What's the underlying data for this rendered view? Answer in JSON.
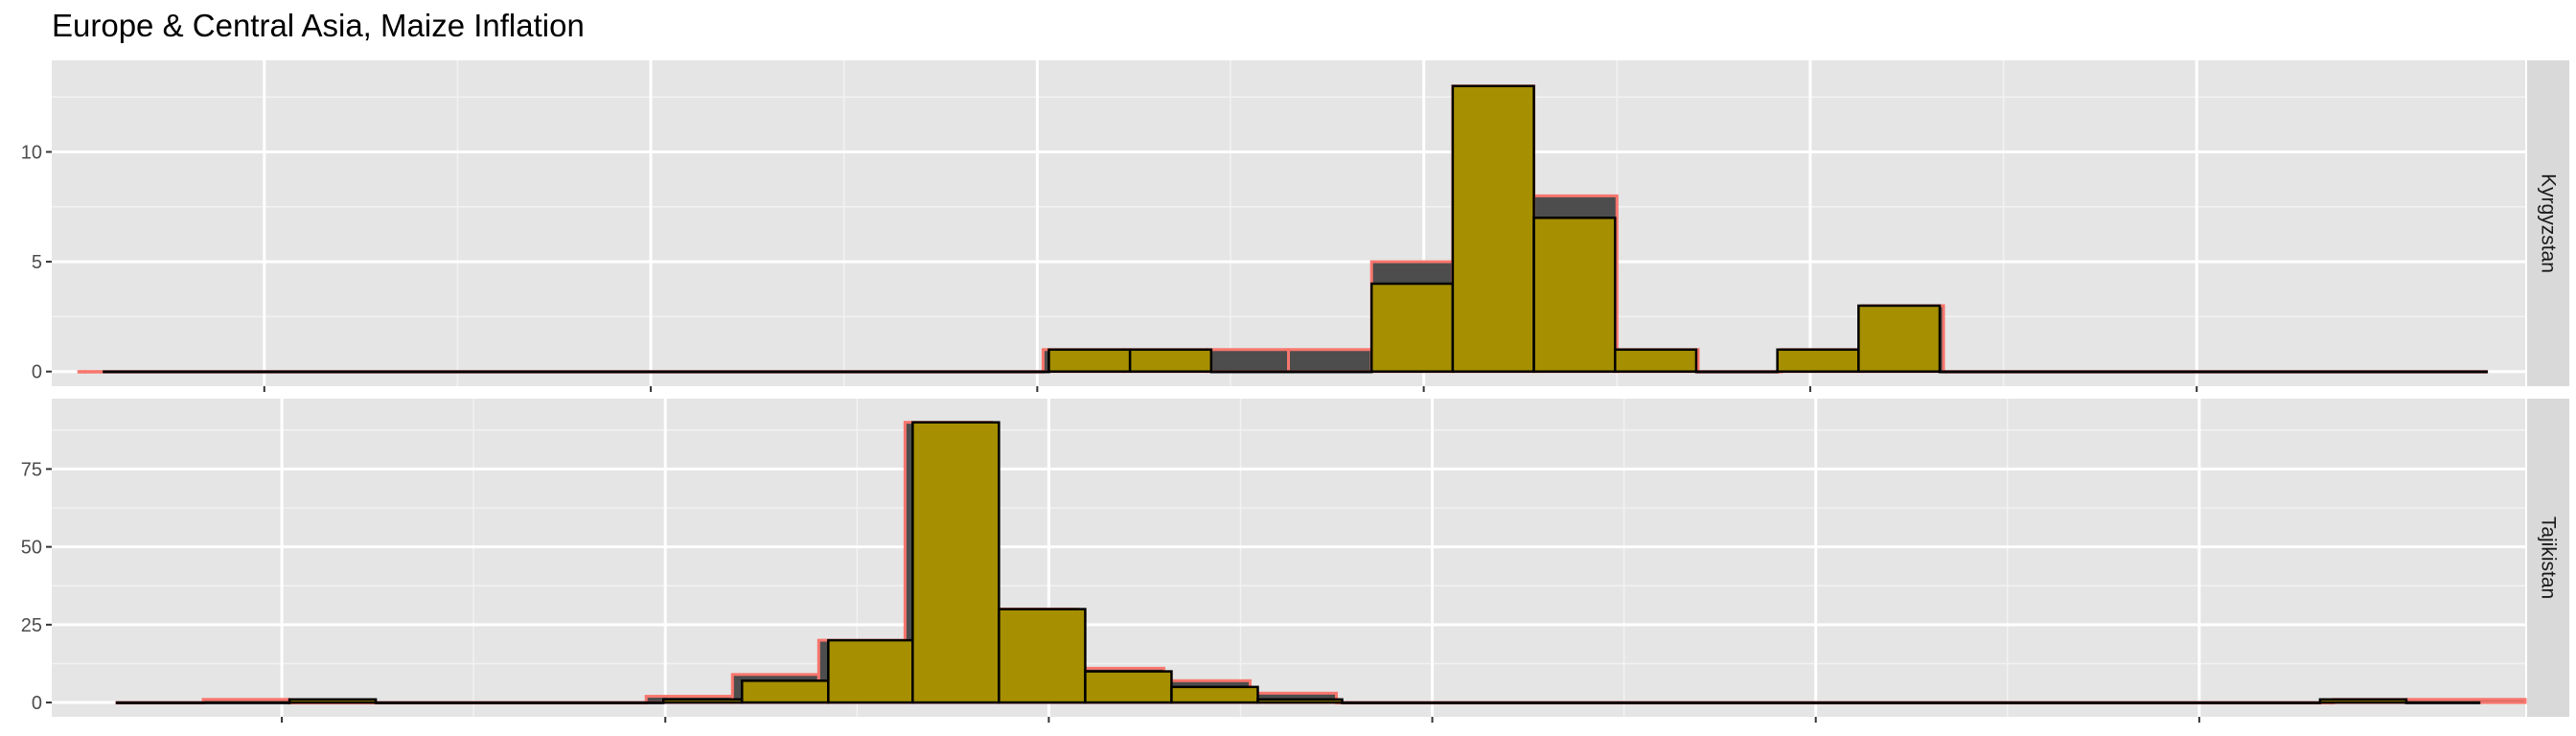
{
  "chart_data": {
    "type": "bar",
    "title": "Europe & Central Asia, Maize Inflation",
    "xlabel": "",
    "ylabel": "",
    "grid": true,
    "legend": "none",
    "colors": {
      "panel_bg": "#e5e5e5",
      "grid_major": "#ffffff",
      "grid_minor": "#f2f2f2",
      "strip_bg": "#d9d9d9",
      "fill_main": "#a68f00",
      "outline_main": "#000000",
      "fill_back": "#4d4d4d",
      "outline_back": "#f8766d"
    },
    "panels": [
      {
        "strip": "Kyrgyzstan",
        "ylim": [
          0,
          13.5
        ],
        "yticks": [
          0,
          5,
          10
        ],
        "series": [
          {
            "name": "",
            "role": "back",
            "bins": [
              [
                -19.6,
                -19.3,
                0
              ],
              [
                -19.3,
                30.3,
                0
              ],
              [
                30.3,
                34.5,
                1
              ],
              [
                34.5,
                38.8,
                1
              ],
              [
                38.8,
                43.0,
                1
              ],
              [
                43.0,
                47.3,
                1
              ],
              [
                47.3,
                51.5,
                5
              ],
              [
                51.5,
                55.7,
                13
              ],
              [
                55.7,
                60.0,
                8
              ],
              [
                60.0,
                64.2,
                1
              ],
              [
                64.2,
                68.5,
                0
              ],
              [
                68.5,
                72.7,
                1
              ],
              [
                72.7,
                76.9,
                3
              ],
              [
                76.9,
                105.0,
                0
              ]
            ]
          },
          {
            "name": "",
            "role": "front",
            "bins": [
              [
                -18.3,
                30.6,
                0
              ],
              [
                30.6,
                34.8,
                1
              ],
              [
                34.8,
                39.0,
                1
              ],
              [
                39.0,
                43.2,
                0
              ],
              [
                43.2,
                47.3,
                0
              ],
              [
                47.3,
                51.5,
                4
              ],
              [
                51.5,
                55.7,
                13
              ],
              [
                55.7,
                59.9,
                7
              ],
              [
                59.9,
                64.1,
                1
              ],
              [
                64.1,
                68.3,
                0
              ],
              [
                68.3,
                72.5,
                1
              ],
              [
                72.5,
                76.7,
                3
              ],
              [
                76.7,
                105.0,
                0
              ]
            ]
          }
        ]
      },
      {
        "strip": "Tajikistan",
        "ylim": [
          0,
          93
        ],
        "yticks": [
          0,
          25,
          50,
          75
        ],
        "series": [
          {
            "name": "",
            "role": "back",
            "bins": [
              [
                -18.6,
                -14.1,
                0
              ],
              [
                -14.1,
                -9.6,
                1
              ],
              [
                -9.6,
                9.0,
                0
              ],
              [
                9.0,
                13.5,
                2
              ],
              [
                13.5,
                18.0,
                9
              ],
              [
                18.0,
                22.5,
                20
              ],
              [
                22.5,
                27.0,
                90
              ],
              [
                27.0,
                31.5,
                30
              ],
              [
                31.5,
                36.0,
                11
              ],
              [
                36.0,
                40.5,
                7
              ],
              [
                40.5,
                45.0,
                3
              ],
              [
                45.0,
                97.0,
                0
              ],
              [
                97.0,
                107.0,
                1
              ]
            ]
          },
          {
            "name": "",
            "role": "front",
            "bins": [
              [
                -18.6,
                -9.6,
                0
              ],
              [
                -9.6,
                -5.1,
                1
              ],
              [
                -5.1,
                9.9,
                0
              ],
              [
                9.9,
                14.0,
                1
              ],
              [
                14.0,
                18.5,
                7
              ],
              [
                18.5,
                22.9,
                20
              ],
              [
                22.9,
                27.4,
                90
              ],
              [
                27.4,
                31.9,
                30
              ],
              [
                31.9,
                36.4,
                10
              ],
              [
                36.4,
                40.9,
                5
              ],
              [
                40.9,
                45.3,
                1
              ],
              [
                45.3,
                96.3,
                0
              ],
              [
                96.3,
                100.8,
                1
              ],
              [
                100.8,
                104.6,
                0
              ]
            ]
          }
        ]
      }
    ]
  }
}
